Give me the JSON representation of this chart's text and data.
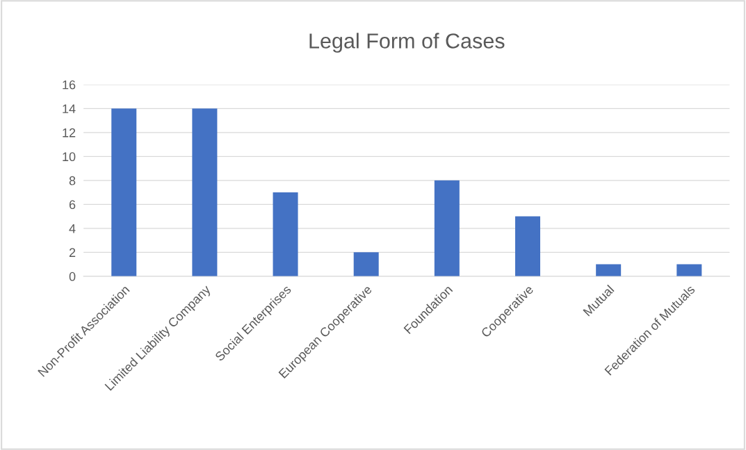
{
  "chart_data": {
    "type": "bar",
    "title": "Legal Form of Cases",
    "categories": [
      "Non-Profit Association",
      "Limited Liability Company",
      "Social Enterprises",
      "European Cooperative",
      "Foundation",
      "Cooperative",
      "Mutual",
      "Federation of Mutuals"
    ],
    "values": [
      14,
      14,
      7,
      2,
      8,
      5,
      1,
      1
    ],
    "color": "#4472c4",
    "ylim": [
      0,
      16
    ],
    "yticks": [
      0,
      2,
      4,
      6,
      8,
      10,
      12,
      14,
      16
    ],
    "grid": "y",
    "legend": false
  }
}
